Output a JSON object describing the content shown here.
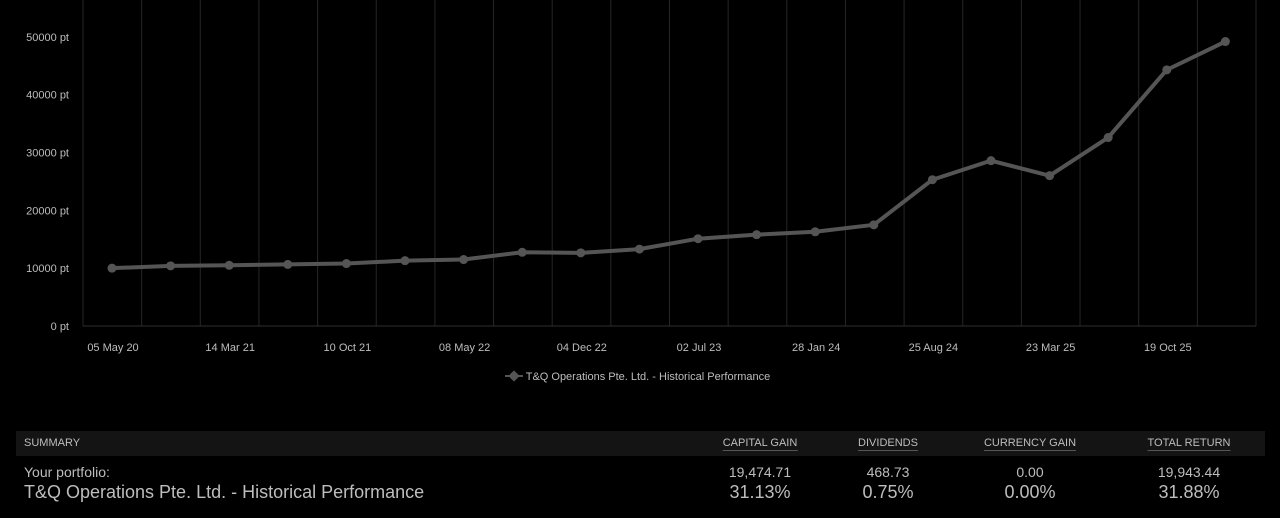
{
  "chart_data": {
    "type": "line",
    "title": "",
    "xlabel": "",
    "ylabel": "",
    "x_tick_labels": [
      "05 May 20",
      "14 Mar 21",
      "10 Oct 21",
      "08 May 22",
      "04 Dec 22",
      "02 Jul 23",
      "28 Jan 24",
      "25 Aug 24",
      "23 Mar 25",
      "19 Oct 25"
    ],
    "y_tick_labels": [
      "0 pt",
      "10000 pt",
      "20000 pt",
      "30000 pt",
      "40000 pt",
      "50000 pt"
    ],
    "ylim": [
      0,
      55000
    ],
    "grid": "vertical",
    "legend_position": "bottom-center",
    "series": [
      {
        "name": "T&Q Operations Pte. Ltd. - Historical Performance",
        "color": "#555555",
        "values": [
          10000,
          10400,
          10500,
          10650,
          10800,
          11300,
          11500,
          12750,
          12650,
          13300,
          15100,
          15800,
          16300,
          17500,
          25300,
          28600,
          26000,
          32600,
          44300,
          49200
        ]
      }
    ]
  },
  "summary": {
    "headers": {
      "summary": "SUMMARY",
      "capital_gain": "CAPITAL GAIN",
      "dividends": "DIVIDENDS",
      "currency_gain": "CURRENCY GAIN",
      "total_return": "TOTAL RETURN"
    },
    "portfolio_row": {
      "label": "Your portfolio:",
      "capital_gain": "19,474.71",
      "dividends": "468.73",
      "currency_gain": "0.00",
      "total_return": "19,943.44"
    },
    "performance_row": {
      "label": "T&Q Operations Pte. Ltd. - Historical Performance",
      "capital_gain": "31.13%",
      "dividends": "0.75%",
      "currency_gain": "0.00%",
      "total_return": "31.88%"
    }
  }
}
